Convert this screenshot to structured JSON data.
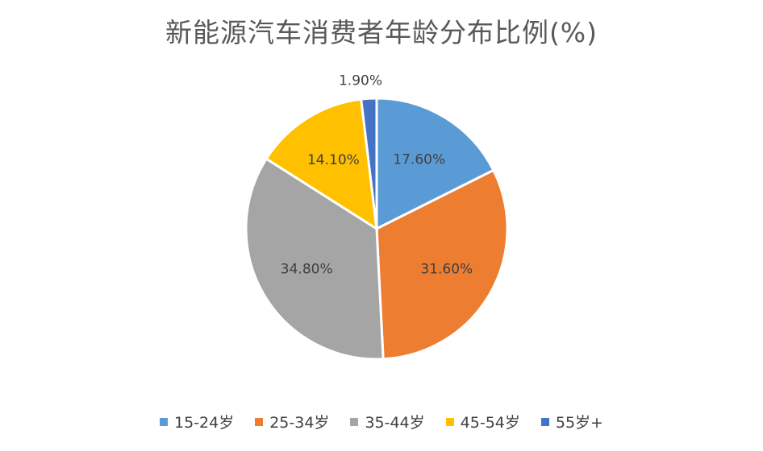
{
  "chart_data": {
    "type": "pie",
    "title": "新能源汽车消费者年龄分布比例(%)",
    "categories": [
      "15-24岁",
      "25-34岁",
      "35-44岁",
      "45-54岁",
      "55岁+"
    ],
    "values": [
      17.6,
      31.6,
      34.8,
      14.1,
      1.9
    ],
    "data_labels": [
      "17.60%",
      "31.60%",
      "34.80%",
      "14.10%",
      "1.90%"
    ],
    "colors": [
      "#5B9BD5",
      "#ED7D31",
      "#A5A5A5",
      "#FFC000",
      "#4472C4"
    ],
    "legend_position": "bottom"
  }
}
